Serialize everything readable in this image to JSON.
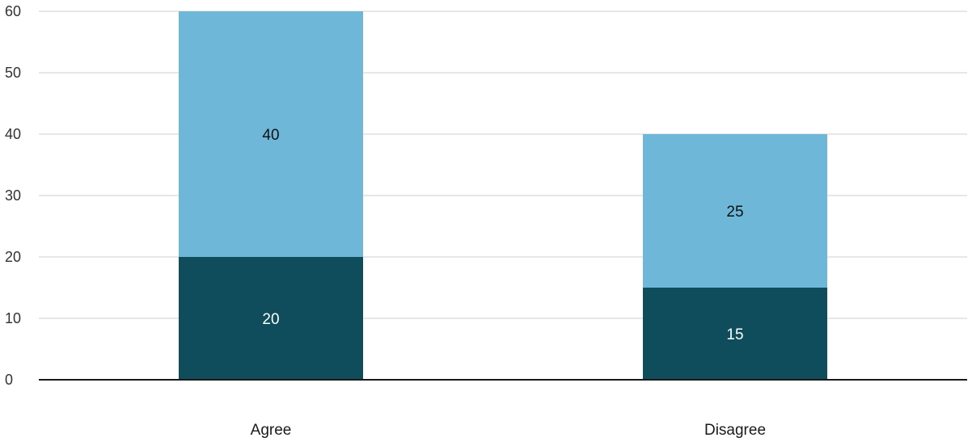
{
  "chart_data": {
    "type": "bar",
    "stacked": true,
    "categories": [
      "Agree",
      "Disagree"
    ],
    "series": [
      {
        "values": [
          20,
          15
        ],
        "color": "#0f4c5c",
        "label_color": "#ffffff"
      },
      {
        "values": [
          40,
          25
        ],
        "color": "#6fb7d8",
        "label_color": "#111111"
      }
    ],
    "ylim": [
      0,
      60
    ],
    "yticks": [
      0,
      10,
      20,
      30,
      40,
      50,
      60
    ],
    "grid": true,
    "legend": "none",
    "title": "",
    "xlabel": "",
    "ylabel": ""
  }
}
